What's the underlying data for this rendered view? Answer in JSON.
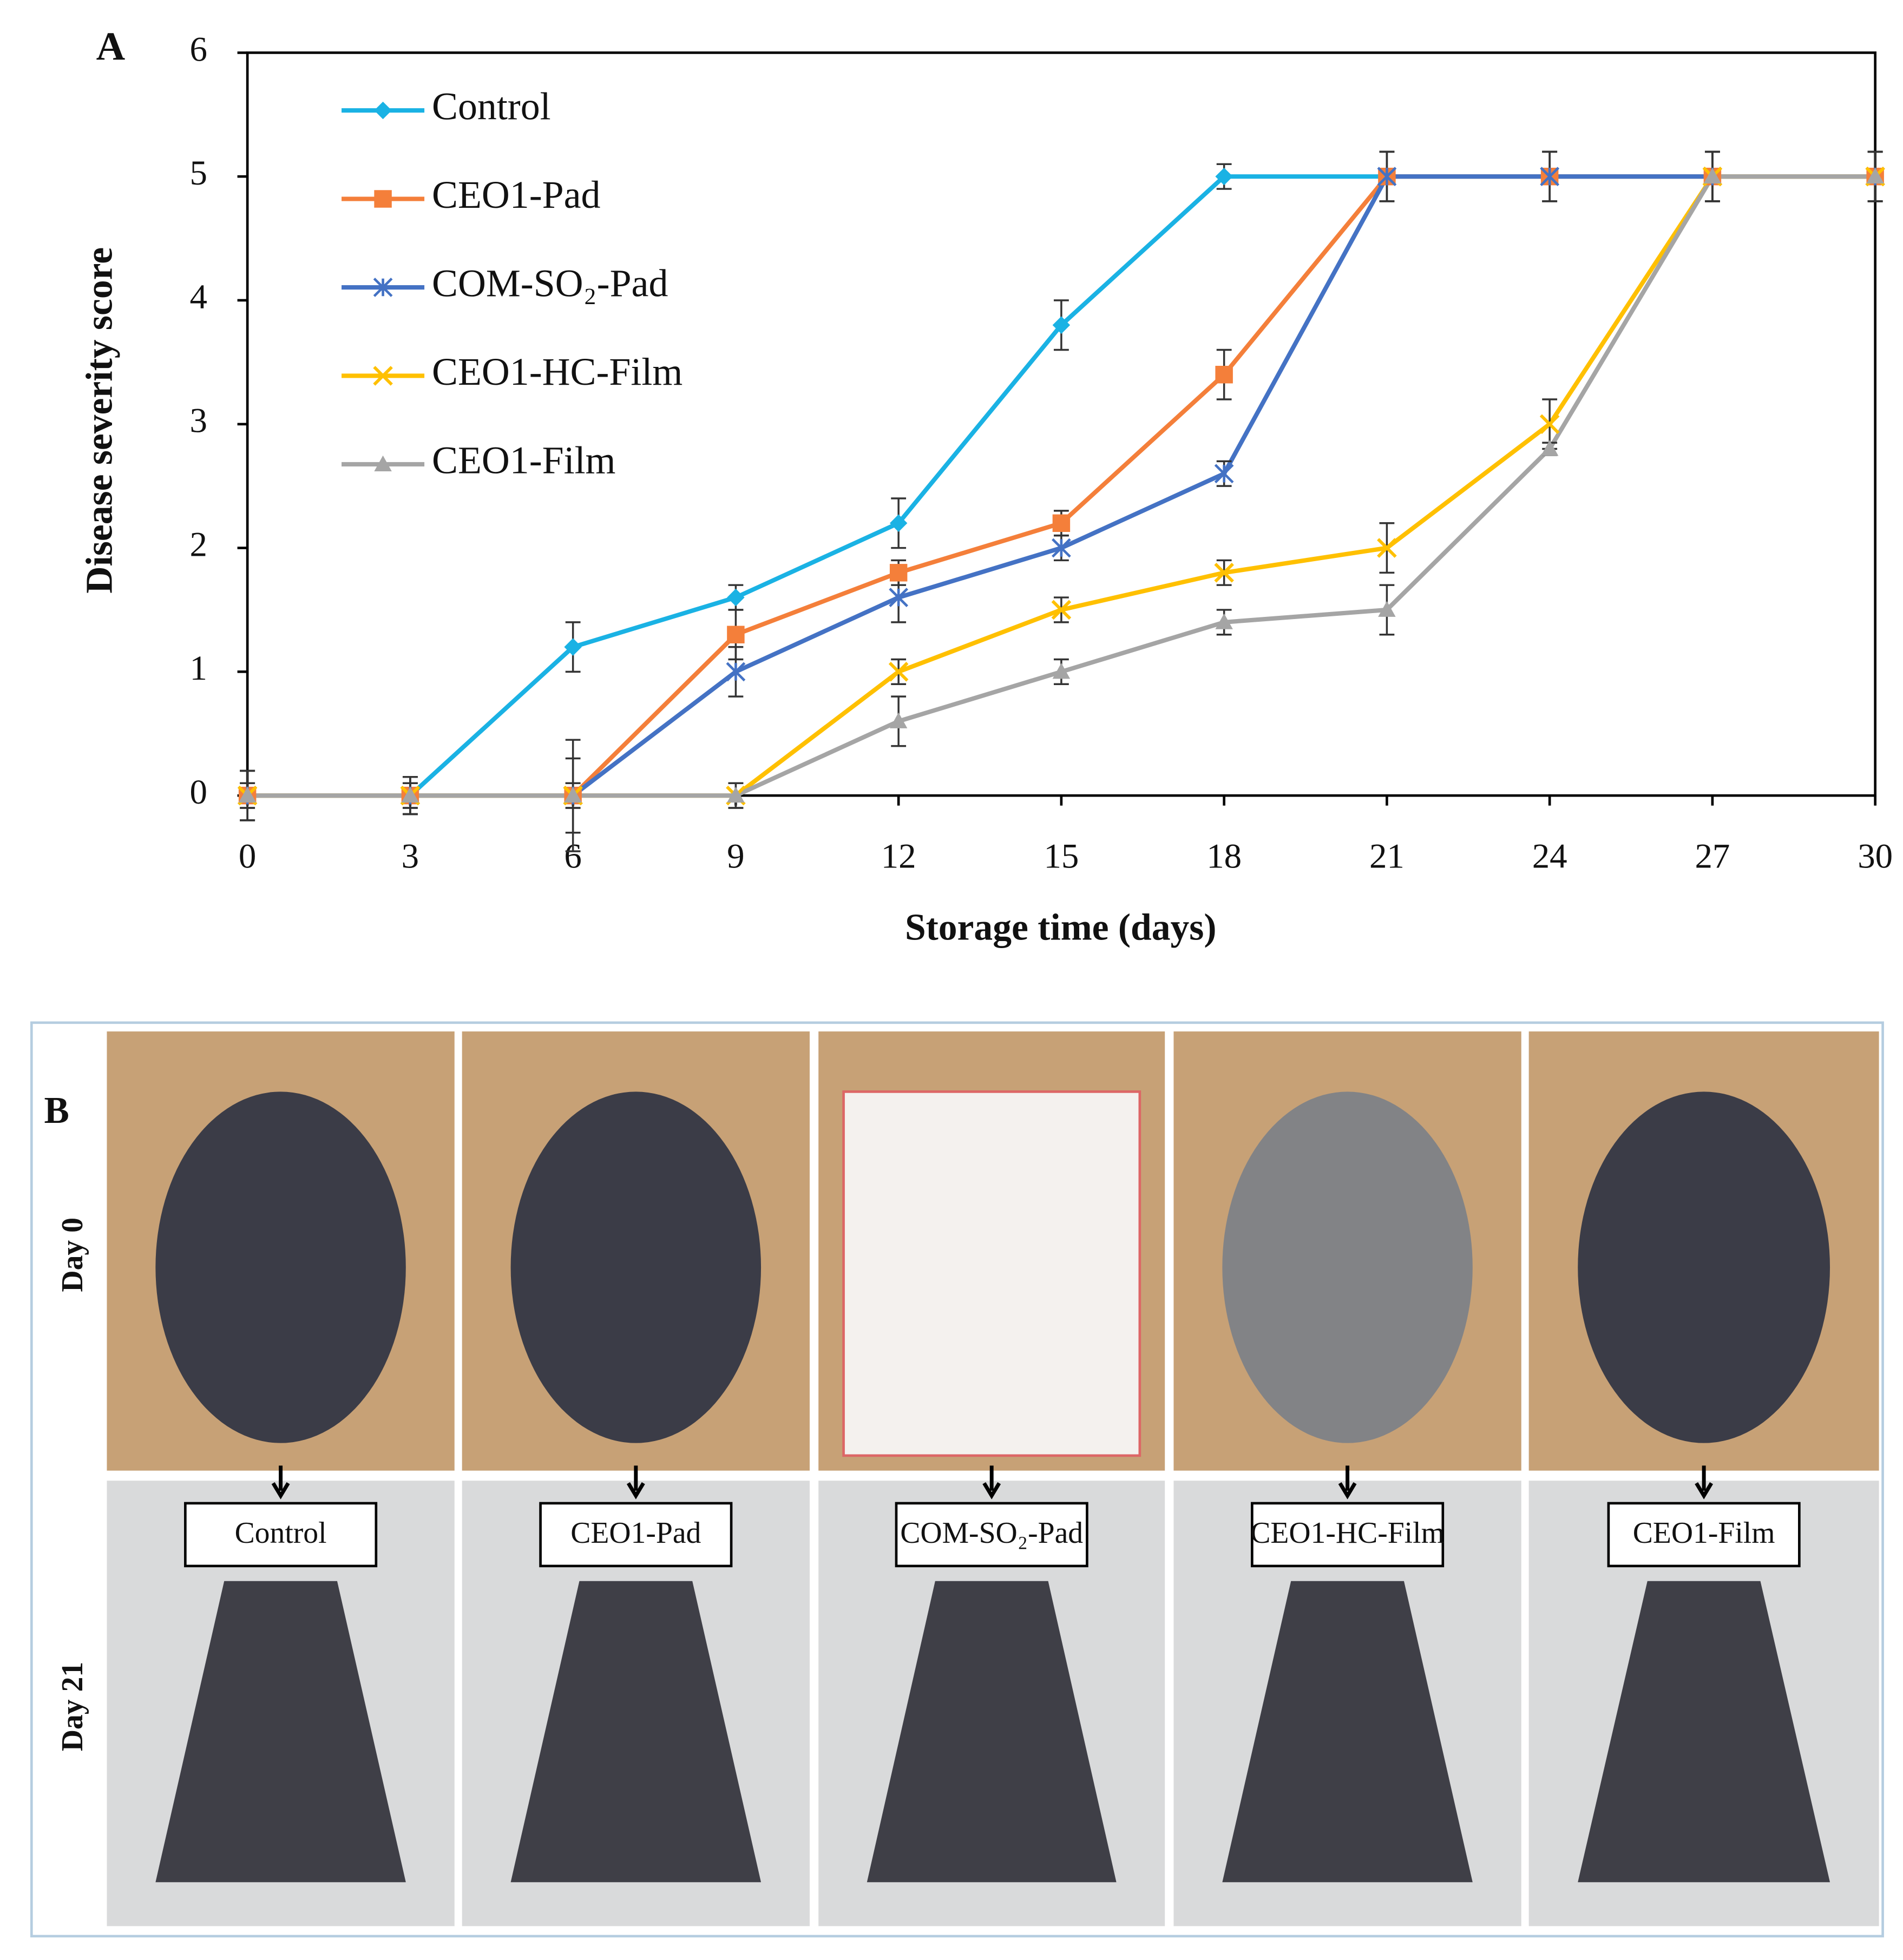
{
  "chart_data": {
    "type": "line",
    "panel_label": "A",
    "x_label": "Storage time (days)",
    "y_label": "Disease severity score",
    "x": [
      0,
      3,
      6,
      9,
      12,
      15,
      18,
      21,
      24,
      27,
      30
    ],
    "xlim": [
      0,
      30
    ],
    "xticks": [
      0,
      3,
      6,
      9,
      12,
      15,
      18,
      21,
      24,
      27,
      30
    ],
    "ylim": [
      0,
      6
    ],
    "yticks": [
      0,
      1,
      2,
      3,
      4,
      5,
      6
    ],
    "grid": false,
    "legend": "upper left",
    "series": [
      {
        "name": "Control",
        "color": "#1ab2e4",
        "marker": "diamond",
        "values": [
          0,
          0,
          1.2,
          1.6,
          2.2,
          3.8,
          5,
          5,
          5,
          5,
          5
        ],
        "errors": [
          0.2,
          0.15,
          0.2,
          0.1,
          0.2,
          0.2,
          0.1,
          0.2,
          0.2,
          0.2,
          0.2
        ]
      },
      {
        "name": "CEO1-Pad",
        "color": "#f47f3a",
        "marker": "square",
        "values": [
          0,
          0,
          0,
          1.3,
          1.8,
          2.2,
          3.4,
          5,
          5,
          5,
          5
        ],
        "errors": [
          0.2,
          0.15,
          0.45,
          0.2,
          0.1,
          0.1,
          0.2,
          0.2,
          0.2,
          0.2,
          0.2
        ]
      },
      {
        "name": "COM-SO₂-Pad",
        "color": "#4472c4",
        "marker": "asterisk",
        "values": [
          0,
          0,
          0,
          1,
          1.6,
          2,
          2.6,
          5,
          5,
          5,
          5
        ],
        "errors": [
          0.2,
          0.15,
          0.3,
          0.2,
          0.2,
          0.1,
          0.1,
          0.2,
          0.2,
          0.2,
          0.2
        ]
      },
      {
        "name": "CEO1-HC-Film",
        "color": "#ffc000",
        "marker": "x",
        "values": [
          0,
          0,
          0,
          0,
          1,
          1.5,
          1.8,
          2,
          3,
          5,
          5
        ],
        "errors": [
          0.1,
          0.1,
          0.1,
          0.1,
          0.1,
          0.1,
          0.1,
          0.2,
          0.2,
          0.2,
          0.2
        ]
      },
      {
        "name": "CEO1-Film",
        "color": "#a5a5a5",
        "marker": "triangle",
        "values": [
          0,
          0,
          0,
          0,
          0.6,
          1,
          1.4,
          1.5,
          2.8,
          5,
          5
        ],
        "errors": [
          0.1,
          0.1,
          0.1,
          0.1,
          0.2,
          0.1,
          0.1,
          0.2,
          0.05,
          0.2,
          0.2
        ]
      }
    ]
  },
  "panel_b": {
    "label": "B",
    "row_labels": [
      "Day 0",
      "Day 21"
    ],
    "photo_labels": [
      "Control",
      "CEO1-Pad",
      "COM-SO₂-Pad",
      "CEO1-HC-Film",
      "CEO1-Film"
    ]
  }
}
